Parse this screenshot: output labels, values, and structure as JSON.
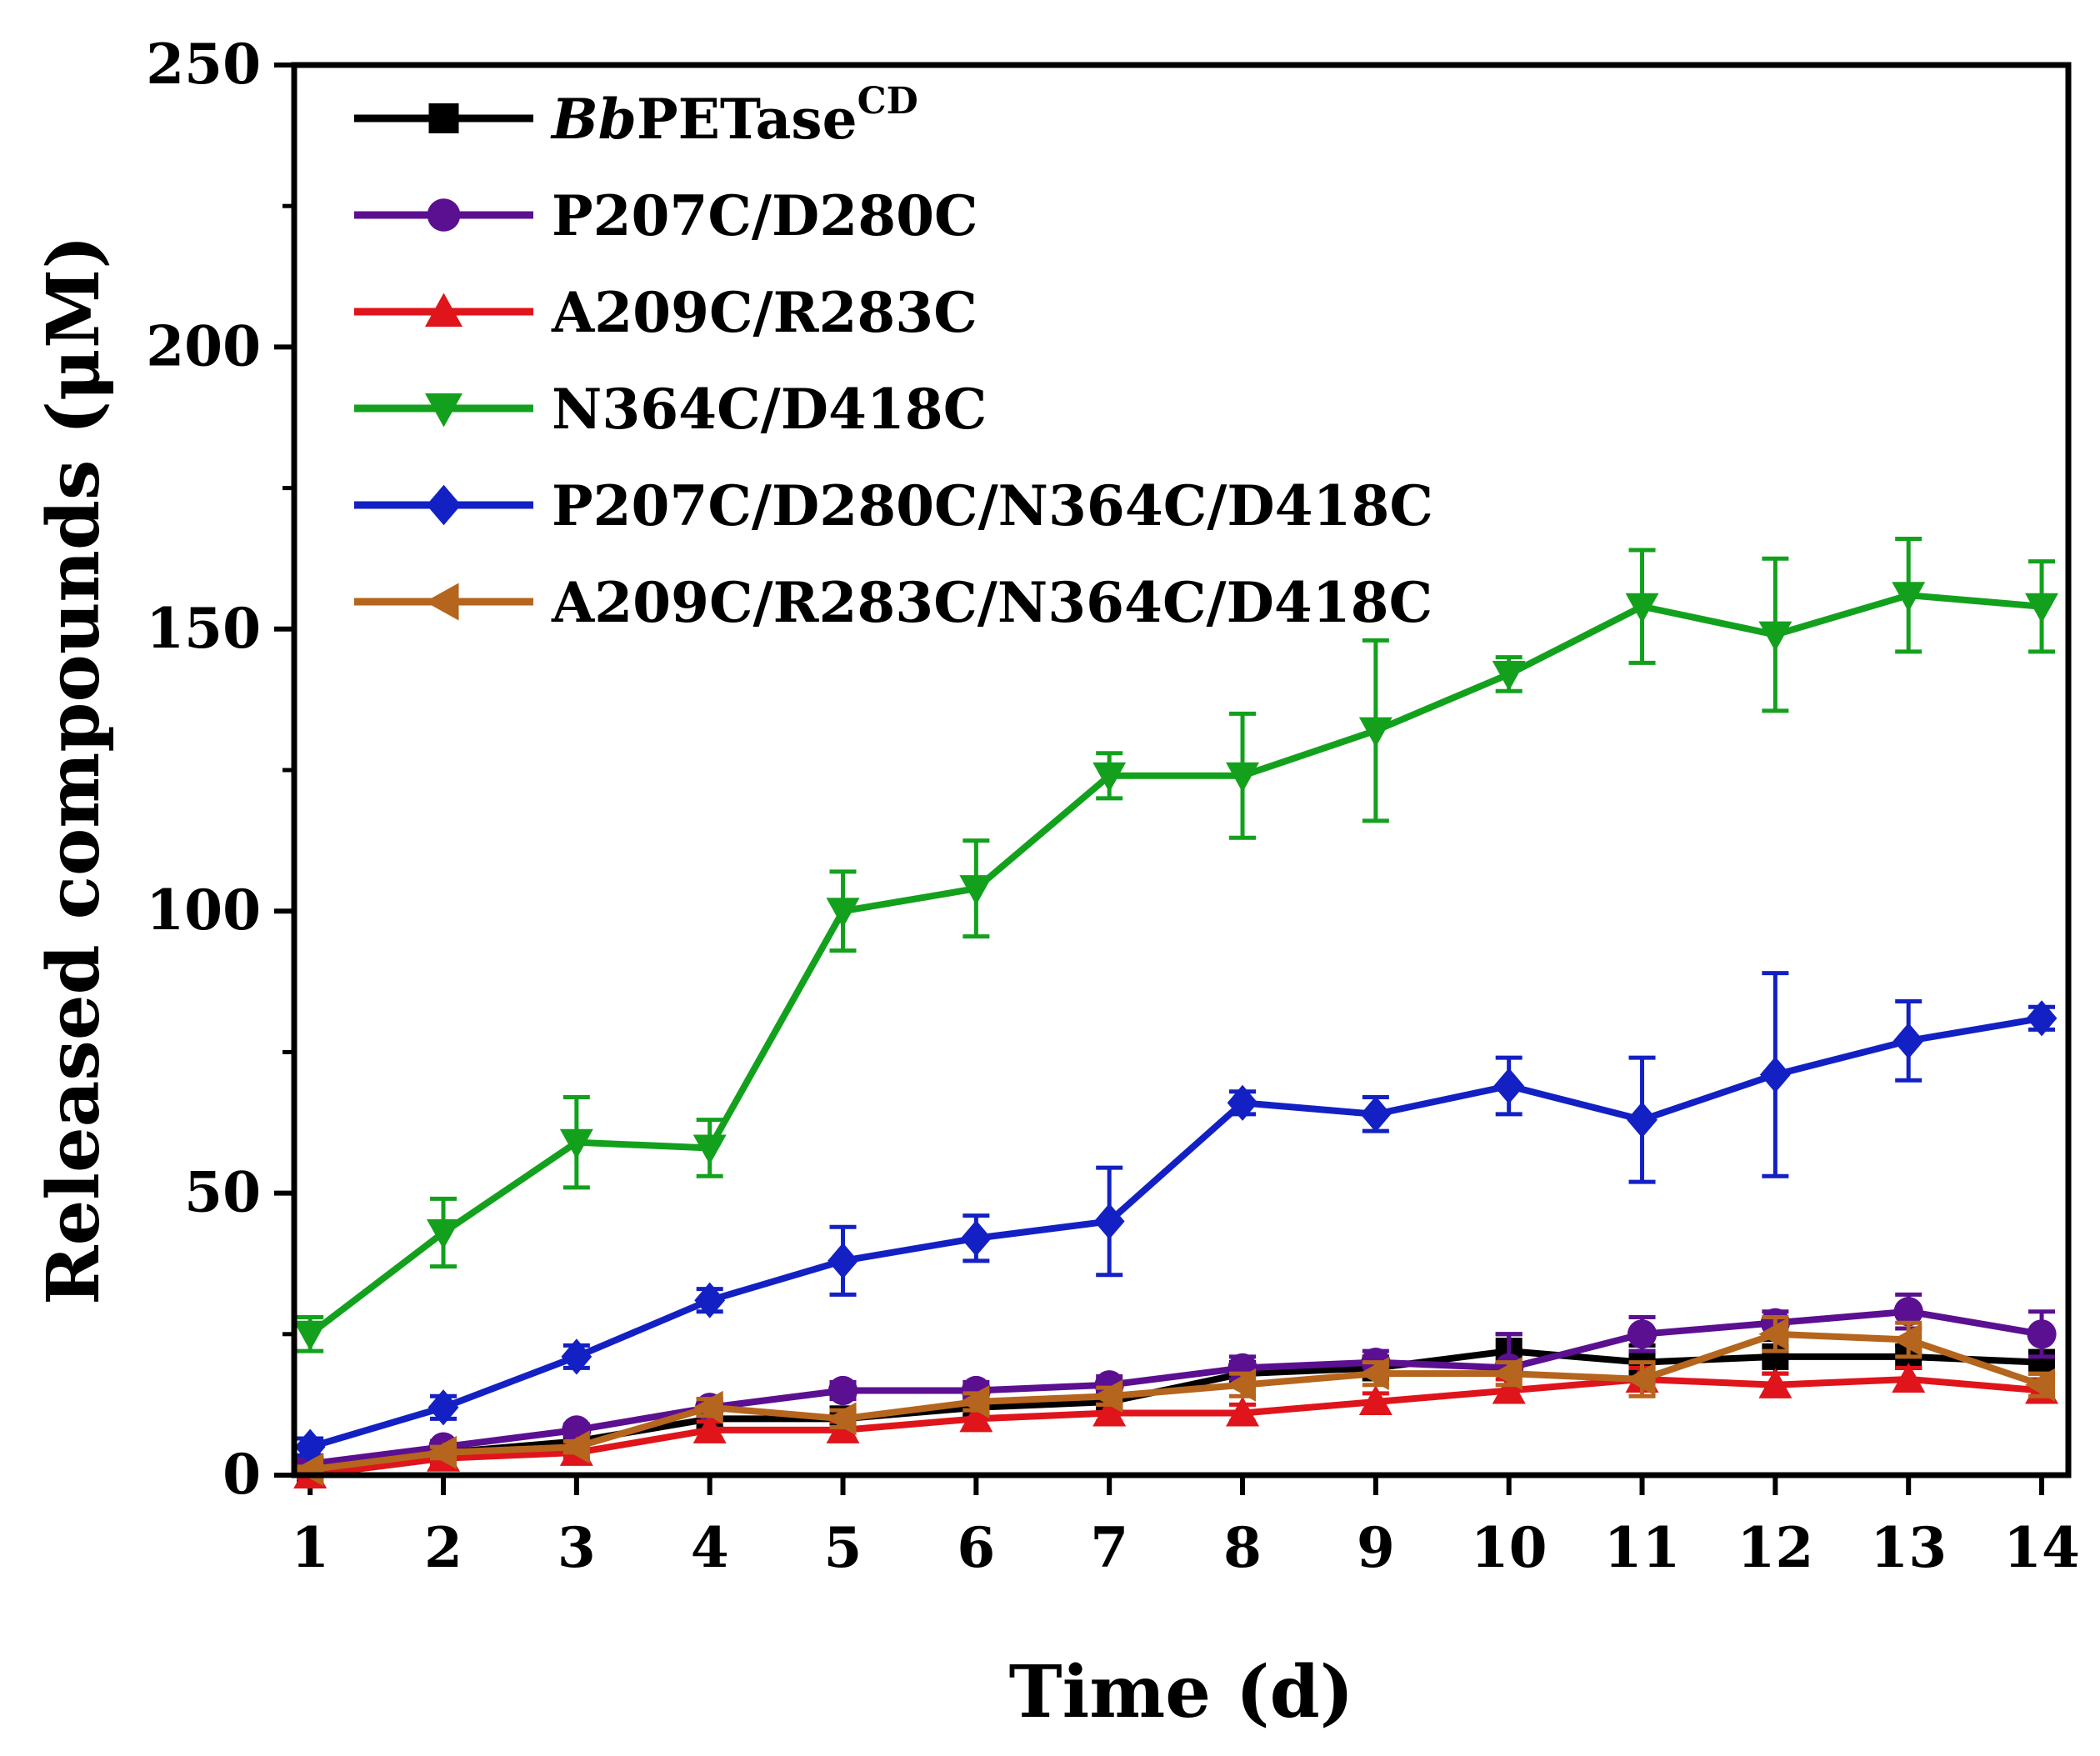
{
  "chart_data": {
    "type": "line",
    "title": "",
    "xlabel": "Time (d)",
    "ylabel": "Released compounds (μM)",
    "xlim": [
      0.88,
      14.2
    ],
    "ylim": [
      0,
      250
    ],
    "x_ticks": [
      1,
      2,
      3,
      4,
      5,
      6,
      7,
      8,
      9,
      10,
      11,
      12,
      13,
      14
    ],
    "y_ticks": [
      0,
      50,
      100,
      150,
      200,
      250
    ],
    "error_bars": true,
    "legend_position": "top-left",
    "grid": false,
    "series": [
      {
        "name_parts": [
          "Bb",
          "PETase",
          "CD"
        ],
        "color": "#000000",
        "marker": "square",
        "x": [
          1,
          2,
          3,
          4,
          5,
          6,
          7,
          8,
          9,
          10,
          11,
          12,
          13,
          14
        ],
        "y": [
          1,
          4,
          6,
          10,
          10,
          12,
          13,
          18,
          19,
          22,
          20,
          21,
          21,
          20
        ],
        "err": [
          1,
          1,
          1,
          1.5,
          1.5,
          1.5,
          1.5,
          2,
          2,
          3,
          3,
          3,
          2,
          2
        ]
      },
      {
        "name": "P207C/D280C",
        "color": "#5b0f91",
        "marker": "circle",
        "x": [
          1,
          2,
          3,
          4,
          5,
          6,
          7,
          8,
          9,
          10,
          11,
          12,
          13,
          14
        ],
        "y": [
          2,
          5,
          8,
          12,
          15,
          15,
          16,
          19,
          20,
          19,
          25,
          27,
          29,
          25
        ],
        "err": [
          1,
          1,
          1,
          1.5,
          1.5,
          1.5,
          1.5,
          2,
          2,
          6,
          3,
          2,
          3,
          4
        ]
      },
      {
        "name": "A209C/R283C",
        "color": "#e0141b",
        "marker": "triangle-up",
        "x": [
          1,
          2,
          3,
          4,
          5,
          6,
          7,
          8,
          9,
          10,
          11,
          12,
          13,
          14
        ],
        "y": [
          0,
          3,
          4,
          8,
          8,
          10,
          11,
          11,
          13,
          15,
          17,
          16,
          17,
          15
        ],
        "err": [
          0.5,
          1,
          1,
          1.5,
          1.5,
          1.5,
          1.5,
          1.5,
          1.5,
          2,
          2,
          2,
          2,
          2
        ]
      },
      {
        "name": "N364C/D418C",
        "color": "#13a11d",
        "marker": "triangle-down",
        "x": [
          1,
          2,
          3,
          4,
          5,
          6,
          7,
          8,
          9,
          10,
          11,
          12,
          13,
          14
        ],
        "y": [
          25,
          43,
          59,
          58,
          100,
          104,
          124,
          124,
          132,
          142,
          154,
          149,
          156,
          154
        ],
        "err": [
          3,
          6,
          8,
          5,
          7,
          8.5,
          4,
          11,
          16,
          3,
          10,
          13.5,
          10,
          8
        ]
      },
      {
        "name": "P207C/D280C/N364C/D418C",
        "color": "#1320c4",
        "marker": "diamond",
        "x": [
          1,
          2,
          3,
          4,
          5,
          6,
          7,
          8,
          9,
          10,
          11,
          12,
          13,
          14
        ],
        "y": [
          5,
          12,
          21,
          31,
          38,
          42,
          45,
          66,
          64,
          69,
          63,
          71,
          77,
          81
        ],
        "err": [
          1.5,
          2,
          2,
          2,
          6,
          4,
          9.5,
          2,
          3,
          5,
          11,
          18,
          7,
          2
        ]
      },
      {
        "name": "A209C/R283C/N364C/D418C",
        "color": "#b5651d",
        "marker": "triangle-left",
        "x": [
          1,
          2,
          3,
          4,
          5,
          6,
          7,
          8,
          9,
          10,
          11,
          12,
          13,
          14
        ],
        "y": [
          1,
          4,
          5,
          12,
          10,
          13,
          14,
          16,
          18,
          18,
          17,
          25,
          24,
          16
        ],
        "err": [
          0.5,
          1,
          1,
          1.5,
          1.5,
          1.5,
          1.5,
          2,
          2,
          2,
          3,
          3,
          3,
          2
        ]
      }
    ]
  }
}
